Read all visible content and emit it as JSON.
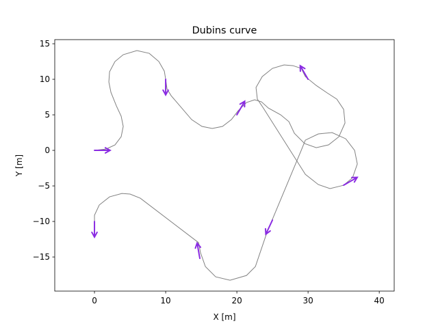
{
  "chart_data": {
    "type": "line",
    "title": "Dubins curve",
    "xlabel": "X [m]",
    "ylabel": "Y [m]",
    "xlim": [
      -5.58,
      42.1
    ],
    "ylim": [
      -19.8,
      15.58
    ],
    "xticks": [
      0,
      10,
      20,
      30,
      40
    ],
    "yticks": [
      {
        "value": -15,
        "label": "−15"
      },
      {
        "value": -10,
        "label": "−10"
      },
      {
        "value": -5,
        "label": "−5"
      },
      0,
      5,
      10,
      15
    ],
    "series": [
      {
        "color": "#808080",
        "x": [
          0,
          1.63,
          2.88,
          3.75,
          4.04,
          3.75,
          3.08,
          2.31,
          2.02,
          2.12,
          2.88,
          4.04,
          5.96,
          7.69,
          9.04,
          9.81,
          10.0,
          10.19,
          10.77,
          13.65,
          15.1,
          16.54,
          17.98,
          19.23,
          20.19,
          21.35,
          22.5,
          23.46,
          24.42,
          26.15,
          27.31,
          28.08,
          29.52,
          31.15,
          32.88,
          34.33,
          35.19,
          35.0,
          34.04,
          32.69,
          31.15,
          29.62,
          29.04,
          27.88,
          26.63,
          25.0,
          23.56,
          22.69,
          22.88,
          23.65,
          29.62,
          31.44,
          33.08,
          34.62,
          35.0,
          36.25,
          36.92,
          36.54,
          35.29,
          33.37,
          31.44,
          29.62,
          29.04,
          24.23,
          22.6,
          21.35,
          19.04,
          17.02,
          15.58,
          14.9,
          14.62,
          6.44,
          5.0,
          3.85,
          2.12,
          0.67,
          0,
          0
        ],
        "y": [
          0,
          0.19,
          0.77,
          1.92,
          3.37,
          4.81,
          6.25,
          8.17,
          9.62,
          11.06,
          12.5,
          13.46,
          14.04,
          13.65,
          12.5,
          11.15,
          10.0,
          8.65,
          7.69,
          4.33,
          3.37,
          3.08,
          3.37,
          4.33,
          5.58,
          6.73,
          7.12,
          6.83,
          5.96,
          5.0,
          4.04,
          2.4,
          0.96,
          0.38,
          0.77,
          1.92,
          3.85,
          5.77,
          7.21,
          8.08,
          9.13,
          10.38,
          11.54,
          11.92,
          12.02,
          11.54,
          10.38,
          8.85,
          7.21,
          6.06,
          -3.37,
          -4.81,
          -5.38,
          -5.0,
          -4.9,
          -3.85,
          -1.92,
          0,
          1.63,
          2.5,
          2.31,
          1.44,
          0,
          -11.54,
          -16.35,
          -17.6,
          -18.27,
          -17.79,
          -16.35,
          -14.42,
          -12.98,
          -6.73,
          -6.15,
          -6.06,
          -6.54,
          -7.69,
          -9.13,
          -10.0
        ]
      }
    ],
    "arrows": {
      "color": "#8a2be2",
      "x": [
        0,
        10,
        20.0,
        30.0,
        35.0,
        25.0,
        14.8,
        0
      ],
      "y": [
        0,
        10,
        5.0,
        10.0,
        -4.9,
        -9.8,
        -15.2,
        -10.0
      ],
      "yaw": [
        0,
        -90,
        60,
        120,
        30,
        -115,
        100,
        -90
      ]
    }
  }
}
